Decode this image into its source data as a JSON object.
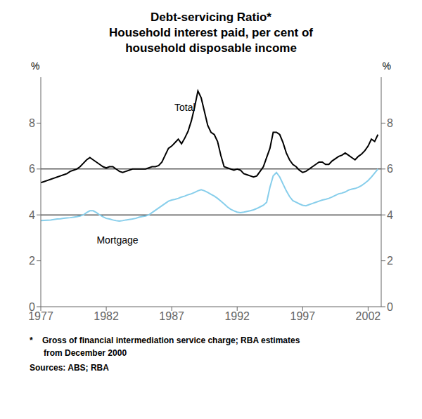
{
  "chart_data": {
    "type": "line",
    "title": [
      "Debt-servicing Ratio*",
      "Household interest paid, per cent of",
      "household disposable income"
    ],
    "ylabel": "%",
    "y2label": "%",
    "xlim": [
      1977,
      2003
    ],
    "xticks": [
      1977,
      1982,
      1987,
      1992,
      1997,
      2002
    ],
    "ylim": [
      0,
      10
    ],
    "yticks": [
      0,
      2,
      4,
      6,
      8
    ],
    "y2lim": [
      0,
      10
    ],
    "y2ticks": [
      0,
      2,
      4,
      6,
      8
    ],
    "grid": false,
    "x": [
      1977.0,
      1977.25,
      1977.5,
      1977.75,
      1978.0,
      1978.25,
      1978.5,
      1978.75,
      1979.0,
      1979.25,
      1979.5,
      1979.75,
      1980.0,
      1980.25,
      1980.5,
      1980.75,
      1981.0,
      1981.25,
      1981.5,
      1981.75,
      1982.0,
      1982.25,
      1982.5,
      1982.75,
      1983.0,
      1983.25,
      1983.5,
      1983.75,
      1984.0,
      1984.25,
      1984.5,
      1984.75,
      1985.0,
      1985.25,
      1985.5,
      1985.75,
      1986.0,
      1986.25,
      1986.5,
      1986.75,
      1987.0,
      1987.25,
      1987.5,
      1987.75,
      1988.0,
      1988.25,
      1988.5,
      1988.75,
      1989.0,
      1989.25,
      1989.5,
      1989.75,
      1990.0,
      1990.25,
      1990.5,
      1990.75,
      1991.0,
      1991.25,
      1991.5,
      1991.75,
      1992.0,
      1992.25,
      1992.5,
      1992.75,
      1993.0,
      1993.25,
      1993.5,
      1993.75,
      1994.0,
      1994.25,
      1994.5,
      1994.75,
      1995.0,
      1995.25,
      1995.5,
      1995.75,
      1996.0,
      1996.25,
      1996.5,
      1996.75,
      1997.0,
      1997.25,
      1997.5,
      1997.75,
      1998.0,
      1998.25,
      1998.5,
      1998.75,
      1999.0,
      1999.25,
      1999.5,
      1999.75,
      2000.0,
      2000.25,
      2000.5,
      2000.75,
      2001.0,
      2001.25,
      2001.5,
      2001.75,
      2002.0,
      2002.25,
      2002.5,
      2002.75
    ],
    "series": [
      {
        "name": "Total",
        "color": "#000000",
        "values": [
          5.4,
          5.45,
          5.5,
          5.55,
          5.6,
          5.65,
          5.7,
          5.75,
          5.8,
          5.9,
          5.95,
          6.0,
          6.1,
          6.25,
          6.4,
          6.5,
          6.4,
          6.3,
          6.2,
          6.1,
          6.05,
          6.1,
          6.1,
          6.0,
          5.9,
          5.85,
          5.9,
          5.95,
          6.0,
          6.0,
          6.0,
          6.0,
          6.0,
          6.05,
          6.1,
          6.1,
          6.15,
          6.3,
          6.6,
          6.9,
          7.0,
          7.15,
          7.3,
          7.1,
          7.35,
          7.65,
          8.1,
          8.7,
          9.4,
          9.1,
          8.5,
          7.9,
          7.6,
          7.5,
          7.2,
          6.6,
          6.1,
          6.05,
          6.0,
          5.95,
          6.0,
          5.95,
          5.8,
          5.75,
          5.7,
          5.65,
          5.7,
          5.9,
          6.1,
          6.5,
          6.9,
          7.6,
          7.6,
          7.5,
          7.15,
          6.7,
          6.4,
          6.2,
          6.1,
          5.95,
          5.85,
          5.9,
          6.0,
          6.1,
          6.2,
          6.3,
          6.3,
          6.2,
          6.2,
          6.35,
          6.45,
          6.55,
          6.6,
          6.7,
          6.6,
          6.5,
          6.4,
          6.55,
          6.65,
          6.8,
          7.0,
          7.3,
          7.2,
          7.5
        ]
      },
      {
        "name": "Mortgage",
        "color": "#87CEEB",
        "values": [
          3.75,
          3.76,
          3.77,
          3.78,
          3.8,
          3.82,
          3.83,
          3.85,
          3.87,
          3.88,
          3.9,
          3.92,
          3.95,
          4.0,
          4.1,
          4.18,
          4.18,
          4.1,
          4.0,
          3.92,
          3.85,
          3.82,
          3.78,
          3.75,
          3.73,
          3.75,
          3.78,
          3.8,
          3.82,
          3.85,
          3.9,
          3.93,
          3.95,
          4.0,
          4.1,
          4.2,
          4.3,
          4.4,
          4.5,
          4.6,
          4.65,
          4.68,
          4.72,
          4.78,
          4.82,
          4.88,
          4.92,
          4.98,
          5.05,
          5.1,
          5.05,
          4.98,
          4.9,
          4.82,
          4.72,
          4.6,
          4.48,
          4.35,
          4.25,
          4.18,
          4.12,
          4.1,
          4.12,
          4.15,
          4.18,
          4.22,
          4.28,
          4.35,
          4.42,
          4.55,
          5.2,
          5.7,
          5.85,
          5.65,
          5.35,
          5.05,
          4.8,
          4.62,
          4.55,
          4.48,
          4.42,
          4.4,
          4.45,
          4.5,
          4.55,
          4.6,
          4.65,
          4.68,
          4.72,
          4.78,
          4.85,
          4.92,
          4.95,
          5.0,
          5.08,
          5.12,
          5.15,
          5.2,
          5.28,
          5.38,
          5.5,
          5.65,
          5.82,
          6.0
        ]
      }
    ],
    "hlines": [
      4,
      6
    ],
    "hline_color": "#000000",
    "annotations": [
      {
        "text": "Total",
        "x": 1988.0,
        "y": 9.0,
        "color": "#000000"
      },
      {
        "text": "Mortgage",
        "x": 1981.0,
        "y": 2.9,
        "color": "#000000"
      }
    ],
    "footnotes": [
      "*    Gross of financial intermediation service charge; RBA estimates",
      "      from December 2000",
      "Sources: ABS; RBA"
    ]
  }
}
